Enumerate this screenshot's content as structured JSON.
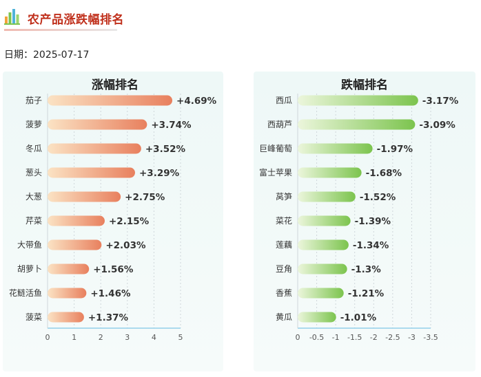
{
  "header": {
    "title": "农产品涨跌幅排名",
    "date_label": "日期：2025-07-17",
    "logo_icon": "bar-chart-icon"
  },
  "chart_data": [
    {
      "type": "bar",
      "orientation": "horizontal",
      "title": "涨幅排名",
      "categories": [
        "茄子",
        "菠萝",
        "冬瓜",
        "葱头",
        "大葱",
        "芹菜",
        "大带鱼",
        "胡萝卜",
        "花鲢活鱼",
        "菠菜"
      ],
      "values": [
        4.69,
        3.74,
        3.52,
        3.29,
        2.75,
        2.15,
        2.03,
        1.56,
        1.46,
        1.37
      ],
      "data_labels": [
        "+4.69%",
        "+3.74%",
        "+3.52%",
        "+3.29%",
        "+2.75%",
        "+2.15%",
        "+2.03%",
        "+1.56%",
        "+1.46%",
        "+1.37%"
      ],
      "xlim": [
        0,
        5
      ],
      "ticks": [
        0,
        1,
        2,
        3,
        4,
        5
      ],
      "tick_labels": [
        "0",
        "1",
        "2",
        "3",
        "4",
        "5"
      ],
      "colors": [
        "#fbe3c4",
        "#e8805e"
      ],
      "grid": true
    },
    {
      "type": "bar",
      "orientation": "horizontal",
      "title": "跌幅排名",
      "categories": [
        "西瓜",
        "西葫芦",
        "巨峰葡萄",
        "富士苹果",
        "莴笋",
        "菜花",
        "莲藕",
        "豆角",
        "香蕉",
        "黄瓜"
      ],
      "values": [
        -3.17,
        -3.09,
        -1.97,
        -1.68,
        -1.52,
        -1.39,
        -1.34,
        -1.3,
        -1.21,
        -1.01
      ],
      "data_labels": [
        "-3.17%",
        "-3.09%",
        "-1.97%",
        "-1.68%",
        "-1.52%",
        "-1.39%",
        "-1.34%",
        "-1.3%",
        "-1.21%",
        "-1.01%"
      ],
      "xlim": [
        0,
        -3.5
      ],
      "ticks": [
        0,
        -0.5,
        -1,
        -1.5,
        -2,
        -2.5,
        -3,
        -3.5
      ],
      "tick_labels": [
        "0",
        "-0.5",
        "-1",
        "-1.5",
        "-2",
        "-2.5",
        "-3",
        "-3.5"
      ],
      "colors": [
        "#ecf6dc",
        "#7cc44e"
      ],
      "grid": true
    }
  ]
}
